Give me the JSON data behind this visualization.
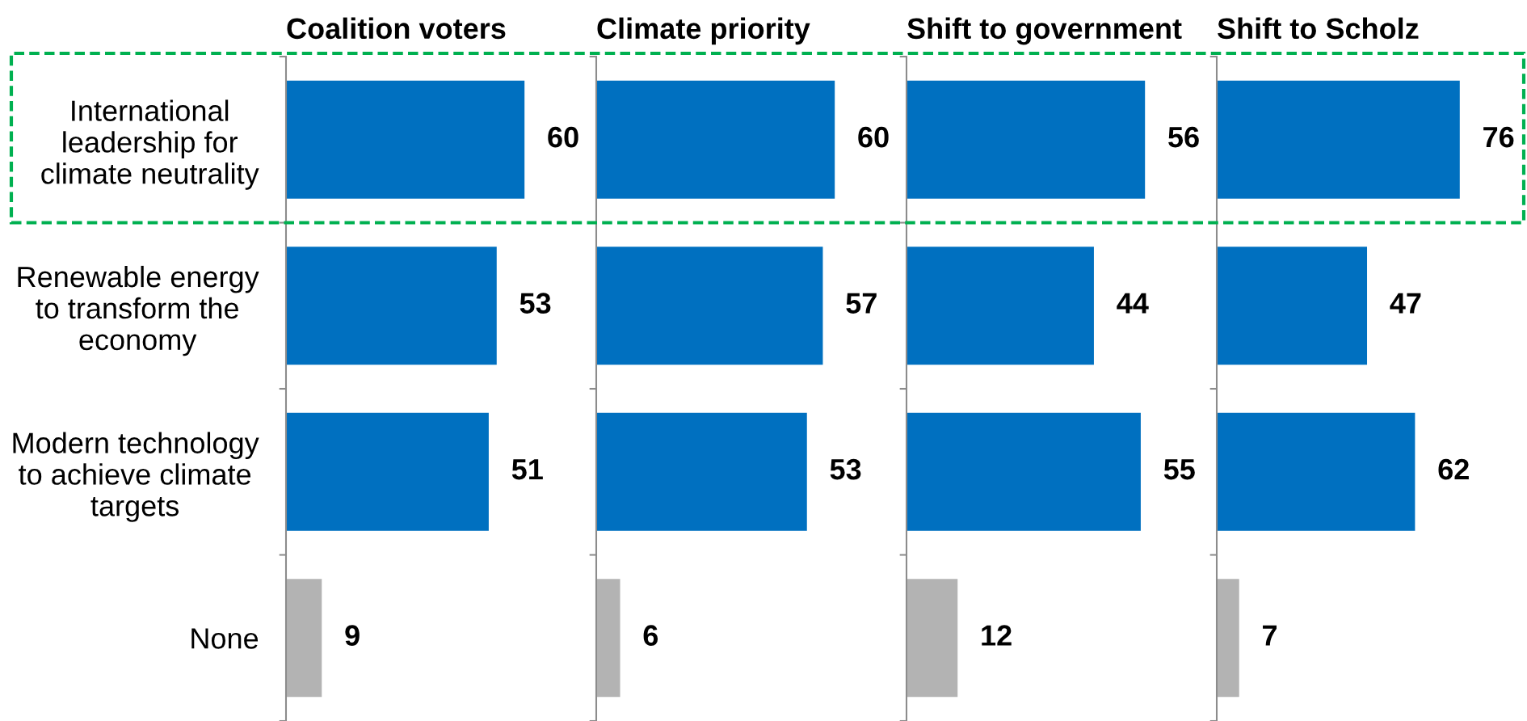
{
  "chart_data": [
    {
      "type": "bar",
      "orientation": "horizontal",
      "title": "Coalition voters",
      "categories": [
        "International\nleadership for\nclimate neutrality",
        "Renewable energy\nto transform the\neconomy",
        "Modern technology\nto achieve climate\ntargets",
        "None"
      ],
      "values": [
        60,
        53,
        51,
        9
      ],
      "colors": [
        "#0070c0",
        "#0070c0",
        "#0070c0",
        "#b3b3b3"
      ],
      "data_labels": true,
      "tick_labels": "y"
    },
    {
      "type": "bar",
      "orientation": "horizontal",
      "title": "Climate priority",
      "categories": [
        null,
        null,
        null,
        null
      ],
      "values": [
        60,
        57,
        53,
        6
      ],
      "colors": [
        "#0070c0",
        "#0070c0",
        "#0070c0",
        "#b3b3b3"
      ],
      "data_labels": true,
      "tick_labels": false
    },
    {
      "type": "bar",
      "orientation": "horizontal",
      "title": "Shift to government",
      "categories": [
        null,
        null,
        null,
        null
      ],
      "values": [
        56,
        44,
        55,
        12
      ],
      "colors": [
        "#0070c0",
        "#0070c0",
        "#0070c0",
        "#b3b3b3"
      ],
      "data_labels": true,
      "tick_labels": false
    },
    {
      "type": "bar",
      "orientation": "horizontal",
      "title": "Shift to Scholz",
      "categories": [
        null,
        null,
        null,
        null
      ],
      "values": [
        76,
        47,
        62,
        7
      ],
      "colors": [
        "#0070c0",
        "#0070c0",
        "#0070c0",
        "#b3b3b3"
      ],
      "data_labels": true,
      "tick_labels": false
    }
  ]
}
